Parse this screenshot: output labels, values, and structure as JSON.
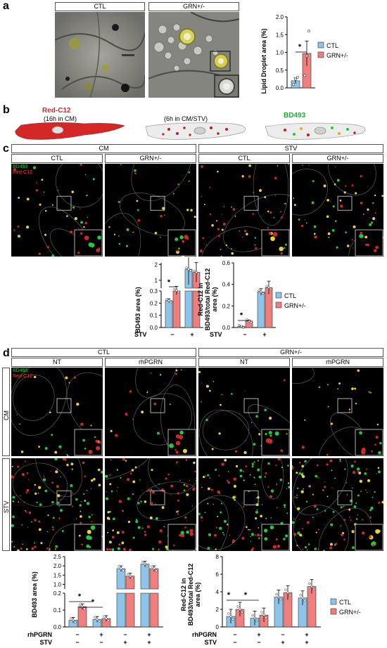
{
  "panels": {
    "a": "a",
    "b": "b",
    "c": "c",
    "d": "d"
  },
  "a": {
    "em_labels": [
      "CTL",
      "GRN+/-"
    ],
    "chart": {
      "type": "bar",
      "categories": [
        "CTL",
        "GRN+/-"
      ],
      "values": [
        0.2,
        0.97
      ],
      "errors": [
        0.08,
        0.35
      ],
      "points": [
        [
          0.1,
          0.25,
          0.3
        ],
        [
          0.35,
          0.9,
          1.6
        ]
      ],
      "ylabel": "Lipid Droplet area (%)",
      "yticks": [
        "0.0",
        "0.5",
        "1.0",
        "1.5",
        "2.0"
      ],
      "ylim": [
        0,
        2.0
      ],
      "sig": "*",
      "legend": [
        "CTL",
        "GRN+/-"
      ]
    }
  },
  "b": {
    "step1_title": "Red-C12",
    "step1_sub": "(16h in CM)",
    "step2": "(6h in CM/STV)",
    "step3": "BD493"
  },
  "c": {
    "group_headers": [
      "CM",
      "STV"
    ],
    "col_headers": [
      "CTL",
      "GRN+/-",
      "CTL",
      "GRN+/-"
    ],
    "channel_green": "BD493",
    "channel_red": "Red-C12",
    "chart1": {
      "type": "bar",
      "ylabel": "BD493 area (%)",
      "categories": [
        "−",
        "+"
      ],
      "xaxis_label": "STV",
      "series": [
        {
          "name": "CTL",
          "values": [
            0.22,
            1.7
          ]
        },
        {
          "name": "GRN+/-",
          "values": [
            0.35,
            1.5
          ]
        }
      ],
      "errors": [
        [
          0.01,
          0.25
        ],
        [
          0.05,
          0.15
        ]
      ],
      "yticks_low": [
        "0.0",
        "0.1",
        "0.2",
        "0.3"
      ],
      "yticks_high": [
        "1",
        "2"
      ],
      "sig": "*"
    },
    "chart2": {
      "type": "bar",
      "ylabel_lines": [
        "Red-C12 in",
        "BD493/total Red-C12",
        "area (%)"
      ],
      "categories": [
        "−",
        "+"
      ],
      "xaxis_label": "STV",
      "series": [
        {
          "name": "CTL",
          "values": [
            0.01,
            0.33
          ]
        },
        {
          "name": "GRN+/-",
          "values": [
            0.06,
            0.37
          ]
        }
      ],
      "errors": [
        [
          0.005,
          0.03
        ],
        [
          0.01,
          0.06
        ]
      ],
      "yticks": [
        "0.0",
        "0.2",
        "0.4",
        "0.6"
      ],
      "ylim": [
        0,
        0.6
      ],
      "sig": "*",
      "legend": [
        "CTL",
        "GRN+/-"
      ]
    }
  },
  "d": {
    "group_headers": [
      "CTL",
      "GRN+/-"
    ],
    "col_headers": [
      "NT",
      "rhPGRN",
      "NT",
      "rhPGRN"
    ],
    "row_labels": [
      "CM",
      "STV"
    ],
    "channel_green": "BD493",
    "channel_red": "Red-C12",
    "chart1": {
      "type": "bar",
      "ylabel": "BD493 area (%)",
      "row_labels": [
        "rhPGRN",
        "STV"
      ],
      "row_values": [
        [
          "−",
          "+",
          "−",
          "+"
        ],
        [
          "−",
          "−",
          "+",
          "+"
        ]
      ],
      "series": [
        {
          "name": "CTL",
          "values": [
            0.04,
            0.045,
            1.85,
            2.1
          ]
        },
        {
          "name": "GRN+/-",
          "values": [
            0.12,
            0.05,
            1.45,
            1.85
          ]
        }
      ],
      "yticks_low": [
        "0.0",
        "0.1",
        "0.2"
      ],
      "yticks_high": [
        "1.0",
        "1.5",
        "2.0",
        "2.5"
      ],
      "sig": [
        "*",
        "*"
      ]
    },
    "chart2": {
      "type": "bar",
      "ylabel_lines": [
        "Red-C12 in",
        "BD493/total Red-C12",
        "area (%)"
      ],
      "row_labels": [
        "rhPGRN",
        "STV"
      ],
      "row_values": [
        [
          "−",
          "+",
          "−",
          "+"
        ],
        [
          "−",
          "−",
          "+",
          "+"
        ]
      ],
      "series": [
        {
          "name": "CTL",
          "values": [
            1.2,
            1.0,
            3.4,
            3.3
          ]
        },
        {
          "name": "GRN+/-",
          "values": [
            2.0,
            1.35,
            3.9,
            4.6
          ]
        }
      ],
      "yticks": [
        "0",
        "2",
        "4",
        "6",
        "8"
      ],
      "ylim": [
        0,
        8
      ],
      "sig": [
        "*",
        "*"
      ],
      "legend": [
        "CTL",
        "GRN+/-"
      ]
    }
  },
  "colors": {
    "ctl": "#8fc3e8",
    "grn": "#ef7e7e",
    "cell_red": "#d42828",
    "green_dot": "#22c93a",
    "red_dot": "#cf2a2a"
  }
}
